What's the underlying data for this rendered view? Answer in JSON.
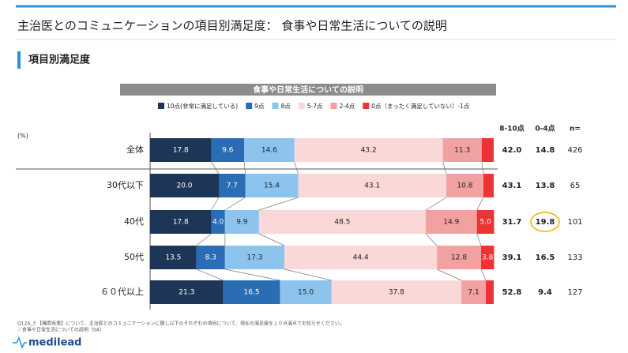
{
  "header": {
    "title": "主治医とのコミュニケーションの項目別満足度： 食事や日常生活についての説明",
    "section": "項目別満足度"
  },
  "chart_data": {
    "type": "bar",
    "orientation": "horizontal",
    "stacked": true,
    "title": "食事や日常生活についての説明",
    "unit_label": "(%)",
    "categories": [
      "全体",
      "30代以下",
      "40代",
      "50代",
      "６０代以上"
    ],
    "xlim": [
      0,
      100
    ],
    "series": [
      {
        "name": "10点(非常に満足している)",
        "color": "#1d3557",
        "values": [
          17.8,
          20.0,
          17.8,
          13.5,
          21.3
        ],
        "value_labels": [
          "17.8",
          "20.0",
          "17.8",
          "13.5",
          "21.3"
        ]
      },
      {
        "name": "9点",
        "color": "#2a6db5",
        "values": [
          9.6,
          7.7,
          4.0,
          8.3,
          16.5
        ],
        "value_labels": [
          "9.6",
          "7.7",
          "4.0",
          "8.3",
          "16.5"
        ]
      },
      {
        "name": "8点",
        "color": "#8cc4ee",
        "values": [
          14.6,
          15.4,
          9.9,
          17.3,
          15.0
        ],
        "value_labels": [
          "14.6",
          "15.4",
          "9.9",
          "17.3",
          "15.0"
        ]
      },
      {
        "name": "5-7点",
        "color": "#fbd8d8",
        "values": [
          43.2,
          43.1,
          48.5,
          44.4,
          37.8
        ],
        "value_labels": [
          "43.2",
          "43.1",
          "48.5",
          "44.4",
          "37.8"
        ]
      },
      {
        "name": "2-4点",
        "color": "#f2a1a1",
        "values": [
          11.3,
          10.8,
          14.9,
          12.8,
          7.1
        ],
        "value_labels": [
          "11.3",
          "10.8",
          "14.9",
          "12.8",
          "7.1"
        ]
      },
      {
        "name": "0点（まったく満足していない）-1点",
        "color": "#ec3434",
        "values": [
          3.5,
          3.0,
          5.0,
          3.8,
          2.3
        ],
        "value_labels": [
          null,
          null,
          "5.0",
          "3.8",
          null
        ]
      }
    ]
  },
  "summary": {
    "headers": [
      "8-10点",
      "0-4点",
      "n="
    ],
    "rows": [
      [
        "42.0",
        "14.8",
        "426"
      ],
      [
        "43.1",
        "13.8",
        "65"
      ],
      [
        "31.7",
        "19.8",
        "101"
      ],
      [
        "39.1",
        "16.5",
        "133"
      ],
      [
        "52.8",
        "9.4",
        "127"
      ]
    ],
    "highlight": {
      "row": 2,
      "column": 1,
      "color": "#f0b400"
    }
  },
  "footnote": [
    "Q12A_3 【種票疾患】について、主治医とのコミュニケーションに関し以下のそれぞれの項目について、現在の満足度を１０点満点でお知らせください。",
    "／食事や日常生活についての説明（SA）"
  ],
  "logo": "medilead"
}
